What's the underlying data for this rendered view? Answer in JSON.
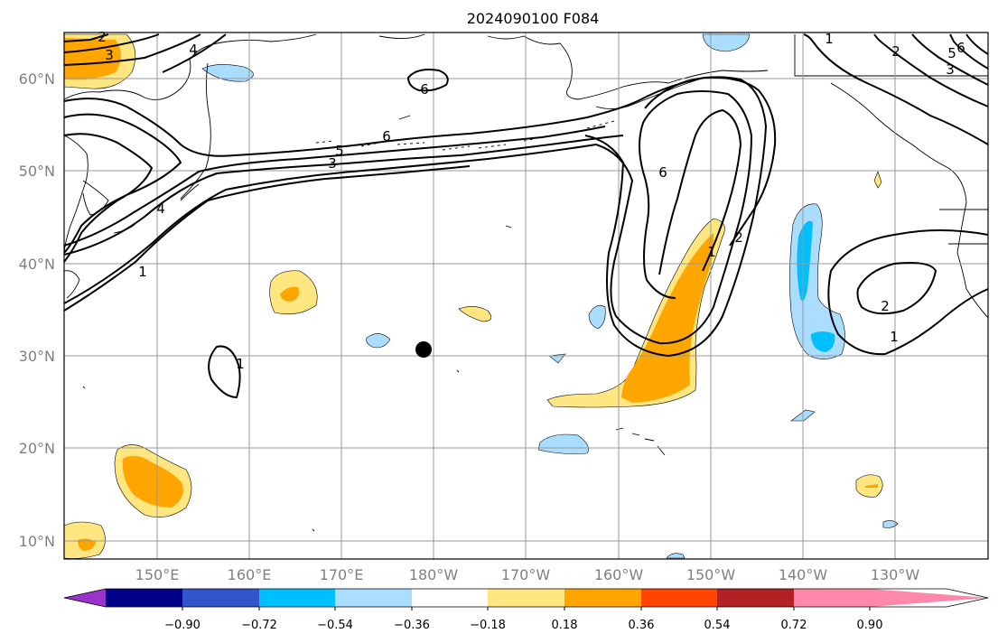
{
  "title": "2024090100 F084",
  "lat_labels": [
    "60°N",
    "50°N",
    "40°N",
    "30°N",
    "20°N",
    "10°N"
  ],
  "lon_labels": [
    "150°E",
    "160°E",
    "170°E",
    "180°W",
    "170°W",
    "160°W",
    "150°W",
    "140°W",
    "130°W"
  ],
  "colorbar": {
    "colors": [
      "#9933cc",
      "#000088",
      "#3355cc",
      "#00bfff",
      "#aaddff",
      "#ffffff",
      "#ffe680",
      "#ffa500",
      "#ff4500",
      "#b22222",
      "#ff88aa"
    ],
    "tick_labels": [
      "−0.90",
      "−0.72",
      "−0.54",
      "−0.36",
      "−0.18",
      "0.18",
      "0.36",
      "0.54",
      "0.72",
      "0.90"
    ]
  },
  "contour_labels": [
    "2",
    "3",
    "4",
    "6",
    "6",
    "5",
    "3",
    "4",
    "1",
    "1",
    "6",
    "2",
    "1",
    "2",
    "1",
    "1",
    "2",
    "3",
    "5",
    "6"
  ],
  "marker": {
    "lat": 30.7,
    "lon": -181.0,
    "color": "#000000"
  }
}
